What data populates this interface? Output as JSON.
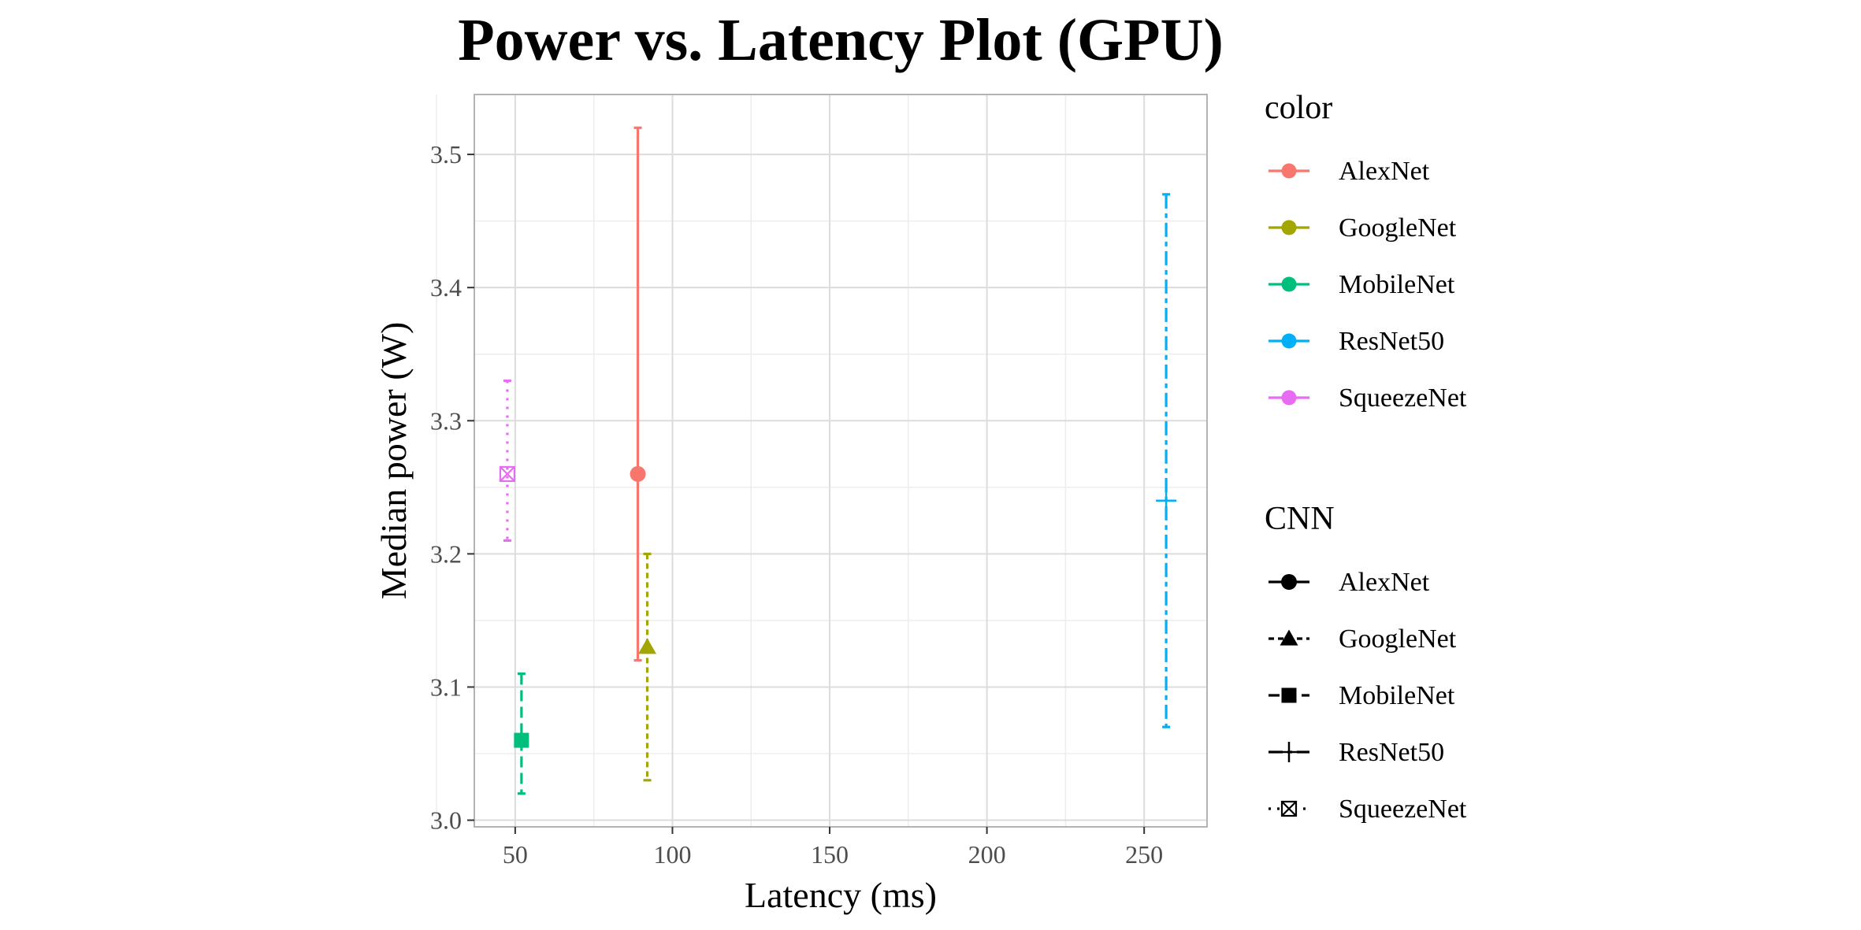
{
  "chart_data": {
    "type": "scatter",
    "title": "Power vs. Latency Plot (GPU)",
    "xlabel": "Latency (ms)",
    "ylabel": "Median power (W)",
    "xlim": [
      37,
      270
    ],
    "ylim": [
      2.995,
      3.545
    ],
    "xticks": [
      50,
      100,
      150,
      200,
      250
    ],
    "yticks": [
      3.0,
      3.1,
      3.2,
      3.3,
      3.4,
      3.5
    ],
    "x_tick_labels": [
      "50",
      "100",
      "150",
      "200",
      "250"
    ],
    "y_tick_labels": [
      "3.0",
      "3.1",
      "3.2",
      "3.3",
      "3.4",
      "3.5"
    ],
    "grid": true,
    "legend_position": "right",
    "series": [
      {
        "name": "AlexNet",
        "x": 89,
        "y": 3.26,
        "ymin": 3.12,
        "ymax": 3.52,
        "color": "#F8766D",
        "shape": "circle",
        "linetype": "solid"
      },
      {
        "name": "GoogleNet",
        "x": 92,
        "y": 3.13,
        "ymin": 3.03,
        "ymax": 3.2,
        "color": "#A3A500",
        "shape": "triangle",
        "linetype": "dashed"
      },
      {
        "name": "MobileNet",
        "x": 52,
        "y": 3.06,
        "ymin": 3.02,
        "ymax": 3.11,
        "color": "#00BF7D",
        "shape": "square",
        "linetype": "longdash"
      },
      {
        "name": "ResNet50",
        "x": 257,
        "y": 3.24,
        "ymin": 3.07,
        "ymax": 3.47,
        "color": "#00B0F6",
        "shape": "plus",
        "linetype": "twodash"
      },
      {
        "name": "SqueezeNet",
        "x": 47.5,
        "y": 3.26,
        "ymin": 3.21,
        "ymax": 3.33,
        "color": "#E76BF3",
        "shape": "square-cross",
        "linetype": "dotted"
      }
    ],
    "legends": [
      {
        "title": "color",
        "kind": "color",
        "items": [
          "AlexNet",
          "GoogleNet",
          "MobileNet",
          "ResNet50",
          "SqueezeNet"
        ]
      },
      {
        "title": "CNN",
        "kind": "shape",
        "items": [
          "AlexNet",
          "GoogleNet",
          "MobileNet",
          "ResNet50",
          "SqueezeNet"
        ]
      }
    ]
  }
}
